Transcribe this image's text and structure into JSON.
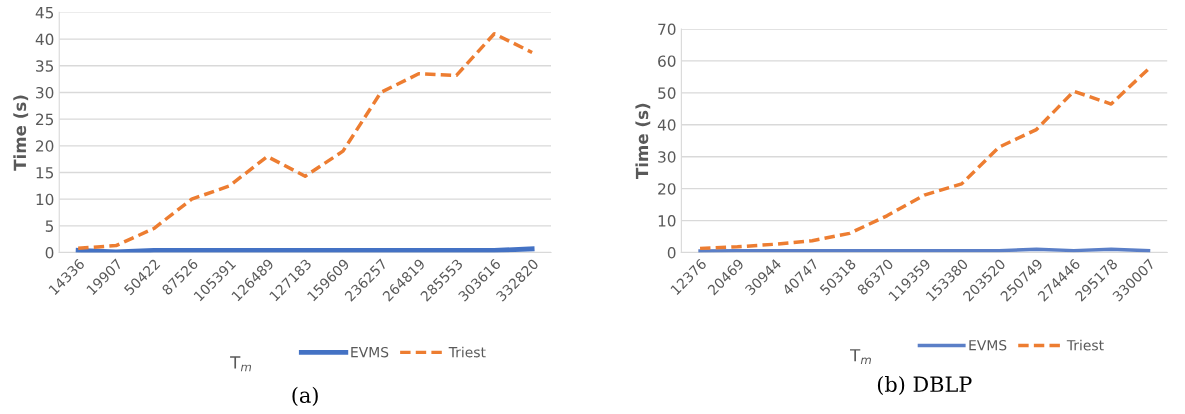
{
  "chart_data": [
    {
      "type": "line",
      "title": "(a)",
      "xlabel": "T$_{m}$",
      "ylabel": "Time (s)",
      "categories": [
        "14336",
        "19907",
        "50422",
        "87526",
        "105391",
        "126489",
        "127183",
        "159609",
        "236257",
        "264819",
        "285553",
        "303616",
        "332820"
      ],
      "series": [
        {
          "name": "EVMS",
          "color": "#4472c4",
          "line_style": "solid",
          "values": [
            0.4,
            0.1,
            0.4,
            0.4,
            0.4,
            0.4,
            0.4,
            0.4,
            0.4,
            0.4,
            0.4,
            0.4,
            0.7
          ]
        },
        {
          "name": "Triest",
          "color": "#ed7d31",
          "line_style": "dashed",
          "values": [
            0.8,
            1.3,
            4.5,
            10,
            12.5,
            18,
            14.3,
            19,
            30,
            33.5,
            33.2,
            41,
            37.5
          ]
        }
      ],
      "ylim": [
        0,
        45
      ],
      "yticks": [
        0,
        5,
        10,
        15,
        20,
        25,
        30,
        35,
        40,
        45
      ],
      "grid": "y",
      "legend": "bottom",
      "marker": "none"
    },
    {
      "type": "line",
      "title": "(b) DBLP",
      "xlabel": "T$_{m}$",
      "ylabel": "Time (s)",
      "categories": [
        "12376",
        "20469",
        "30944",
        "40747",
        "50318",
        "86370",
        "119359",
        "153380",
        "203520",
        "250749",
        "274446",
        "295178",
        "330007"
      ],
      "series": [
        {
          "name": "EVMS",
          "color": "#5b7fc7",
          "line_style": "solid",
          "values": [
            0.5,
            0.6,
            0.6,
            0.6,
            0.6,
            0.6,
            0.6,
            0.6,
            0.6,
            1.0,
            0.6,
            1.0,
            0.6
          ]
        },
        {
          "name": "Triest",
          "color": "#ed7d31",
          "line_style": "dashed",
          "values": [
            1.3,
            1.8,
            2.6,
            3.7,
            6,
            11.5,
            18,
            21.5,
            33,
            38.5,
            50.5,
            46.5,
            57.5
          ]
        }
      ],
      "ylim": [
        0,
        70
      ],
      "yticks": [
        0,
        10,
        20,
        30,
        40,
        50,
        60,
        70
      ],
      "grid": "y",
      "legend": "bottom",
      "marker": "none"
    }
  ]
}
